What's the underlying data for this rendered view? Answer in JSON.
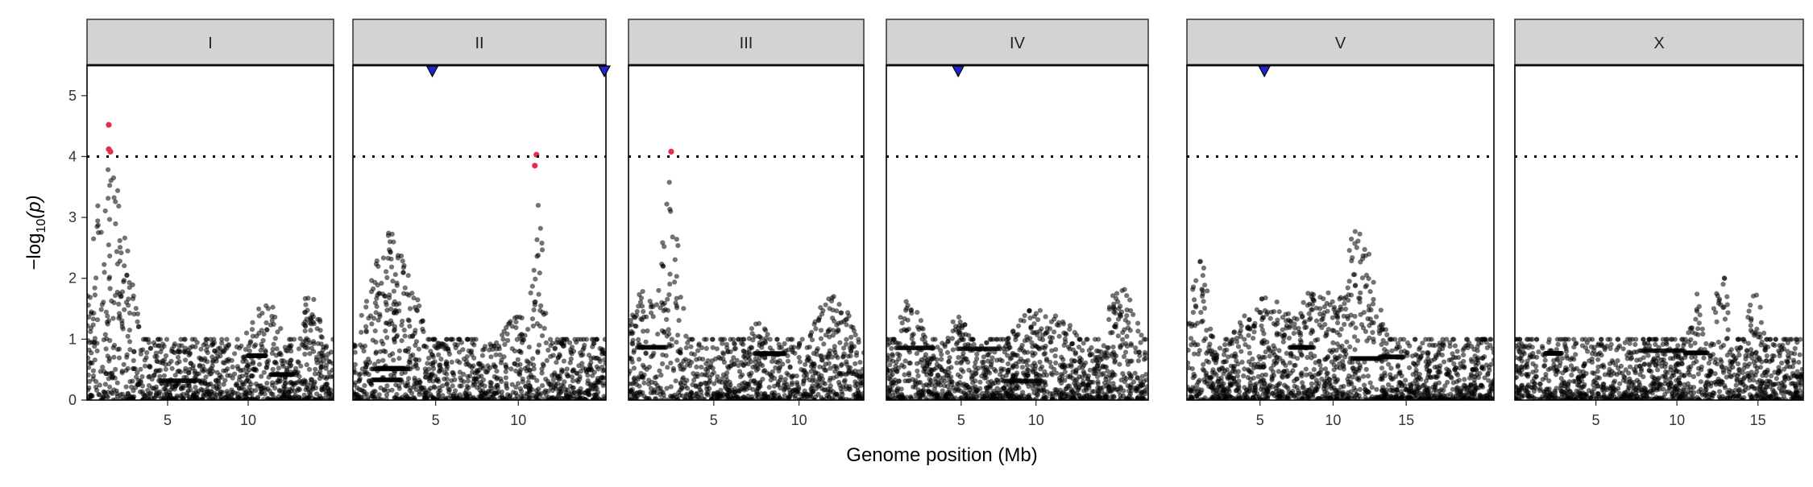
{
  "chart_data": {
    "type": "scatter",
    "facet_layout": "single row of panels, one per chromosome",
    "xlabel": "Genome position (Mb)",
    "ylabel_prefix": "−log",
    "ylabel_sub": "10",
    "ylabel_arg": "(p)",
    "ylim": [
      0,
      5.5
    ],
    "y_ticks": [
      0,
      1,
      2,
      3,
      4,
      5
    ],
    "threshold": 4,
    "threshold_style": "dotted",
    "grid": false,
    "colors": {
      "points": "#000000",
      "significant": "#e0304e",
      "marker": "#1f25c8",
      "strip": "#d3d3d3",
      "frame": "#000000"
    },
    "panels": [
      {
        "chrom": "I",
        "xlim": [
          0,
          15.3
        ],
        "x_ticks": [
          5,
          10
        ],
        "markers": [],
        "peaks": [
          [
            1.4,
            1.2,
            3.9
          ],
          [
            1.0,
            1.5,
            2.6
          ],
          [
            13.9,
            0.6,
            1.9
          ],
          [
            11.0,
            1.2,
            1.6
          ]
        ],
        "sig_points": [
          [
            1.35,
            4.52
          ],
          [
            1.35,
            4.12
          ],
          [
            1.45,
            4.08
          ]
        ]
      },
      {
        "chrom": "II",
        "xlim": [
          0,
          15.3
        ],
        "x_ticks": [
          5,
          10
        ],
        "markers": [
          4.8,
          15.3
        ],
        "peaks": [
          [
            2.3,
            1.5,
            2.8
          ],
          [
            11.2,
            0.4,
            3.2
          ],
          [
            10.0,
            1.4,
            1.3
          ]
        ],
        "sig_points": [
          [
            11.1,
            4.03
          ],
          [
            11.0,
            3.85
          ]
        ]
      },
      {
        "chrom": "III",
        "xlim": [
          0,
          13.8
        ],
        "x_ticks": [
          5,
          10
        ],
        "markers": [],
        "peaks": [
          [
            2.4,
            0.6,
            3.7
          ],
          [
            1.5,
            1.4,
            2.0
          ],
          [
            12.0,
            1.3,
            1.7
          ],
          [
            7.6,
            1.0,
            1.2
          ]
        ],
        "sig_points": [
          [
            2.5,
            4.08
          ]
        ]
      },
      {
        "chrom": "IV",
        "xlim": [
          0,
          17.5
        ],
        "x_ticks": [
          5,
          10
        ],
        "markers": [
          4.8
        ],
        "peaks": [
          [
            1.6,
            1.0,
            1.6
          ],
          [
            10.5,
            2.5,
            1.5
          ],
          [
            15.7,
            1.2,
            1.9
          ],
          [
            4.8,
            1.0,
            1.3
          ]
        ],
        "sig_points": []
      },
      {
        "chrom": "V",
        "xlim": [
          0,
          21.0
        ],
        "x_ticks": [
          5,
          10,
          15
        ],
        "markers": [
          5.3
        ],
        "peaks": [
          [
            11.8,
            1.3,
            2.9
          ],
          [
            9.0,
            2.0,
            1.8
          ],
          [
            5.5,
            2.5,
            1.6
          ],
          [
            0.9,
            0.7,
            2.4
          ]
        ],
        "sig_points": []
      },
      {
        "chrom": "X",
        "xlim": [
          0,
          17.8
        ],
        "x_ticks": [
          5,
          10,
          15
        ],
        "markers": [],
        "peaks": [
          [
            14.8,
            0.6,
            1.8
          ],
          [
            8.5,
            1.2,
            0.9
          ],
          [
            11.2,
            0.5,
            1.7
          ],
          [
            12.8,
            0.6,
            2.1
          ]
        ],
        "sig_points": []
      }
    ]
  }
}
